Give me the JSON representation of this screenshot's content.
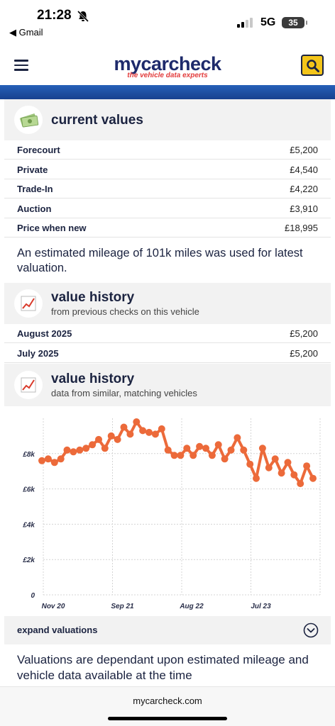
{
  "status_bar": {
    "time": "21:28",
    "back_app": "◀ Gmail",
    "network": "5G",
    "battery": "35"
  },
  "header": {
    "brand_name": "mycarcheck",
    "brand_tagline": "the vehicle data experts"
  },
  "current_values": {
    "title": "current values",
    "rows": [
      {
        "label": "Forecourt",
        "value": "£5,200"
      },
      {
        "label": "Private",
        "value": "£4,540"
      },
      {
        "label": "Trade-In",
        "value": "£4,220"
      },
      {
        "label": "Auction",
        "value": "£3,910"
      },
      {
        "label": "Price when new",
        "value": "£18,995"
      }
    ],
    "note": "An estimated mileage of 101k miles was used for latest valuation."
  },
  "value_history_checks": {
    "title": "value history",
    "subtitle": "from previous checks on this vehicle",
    "rows": [
      {
        "label": "August 2025",
        "value": "£5,200"
      },
      {
        "label": "July 2025",
        "value": "£5,200"
      }
    ]
  },
  "value_history_similar": {
    "title": "value history",
    "subtitle": "data from similar, matching vehicles"
  },
  "chart_data": {
    "type": "line",
    "x_tick_labels": [
      "Nov 20",
      "Sep 21",
      "Aug 22",
      "Jul 23"
    ],
    "y_tick_labels": [
      "0",
      "£2k",
      "£4k",
      "£6k",
      "£8k"
    ],
    "ylim": [
      0,
      10000
    ],
    "grid": true,
    "series_color": "#ec6a3a",
    "values": [
      7600,
      7700,
      7500,
      7700,
      8200,
      8100,
      8200,
      8300,
      8500,
      8800,
      8300,
      9000,
      8800,
      9500,
      9100,
      9800,
      9300,
      9200,
      9100,
      9400,
      8200,
      7900,
      7900,
      8300,
      7900,
      8400,
      8300,
      7900,
      8500,
      7700,
      8200,
      8900,
      8200,
      7400,
      6600,
      8300,
      7200,
      7700,
      6900,
      7500,
      6800,
      6300,
      7300,
      6600
    ]
  },
  "expand": {
    "label": "expand valuations"
  },
  "disclaimer": "Valuations are dependant upon estimated mileage and vehicle data available at the time",
  "footer": {
    "url": "mycarcheck.com"
  }
}
